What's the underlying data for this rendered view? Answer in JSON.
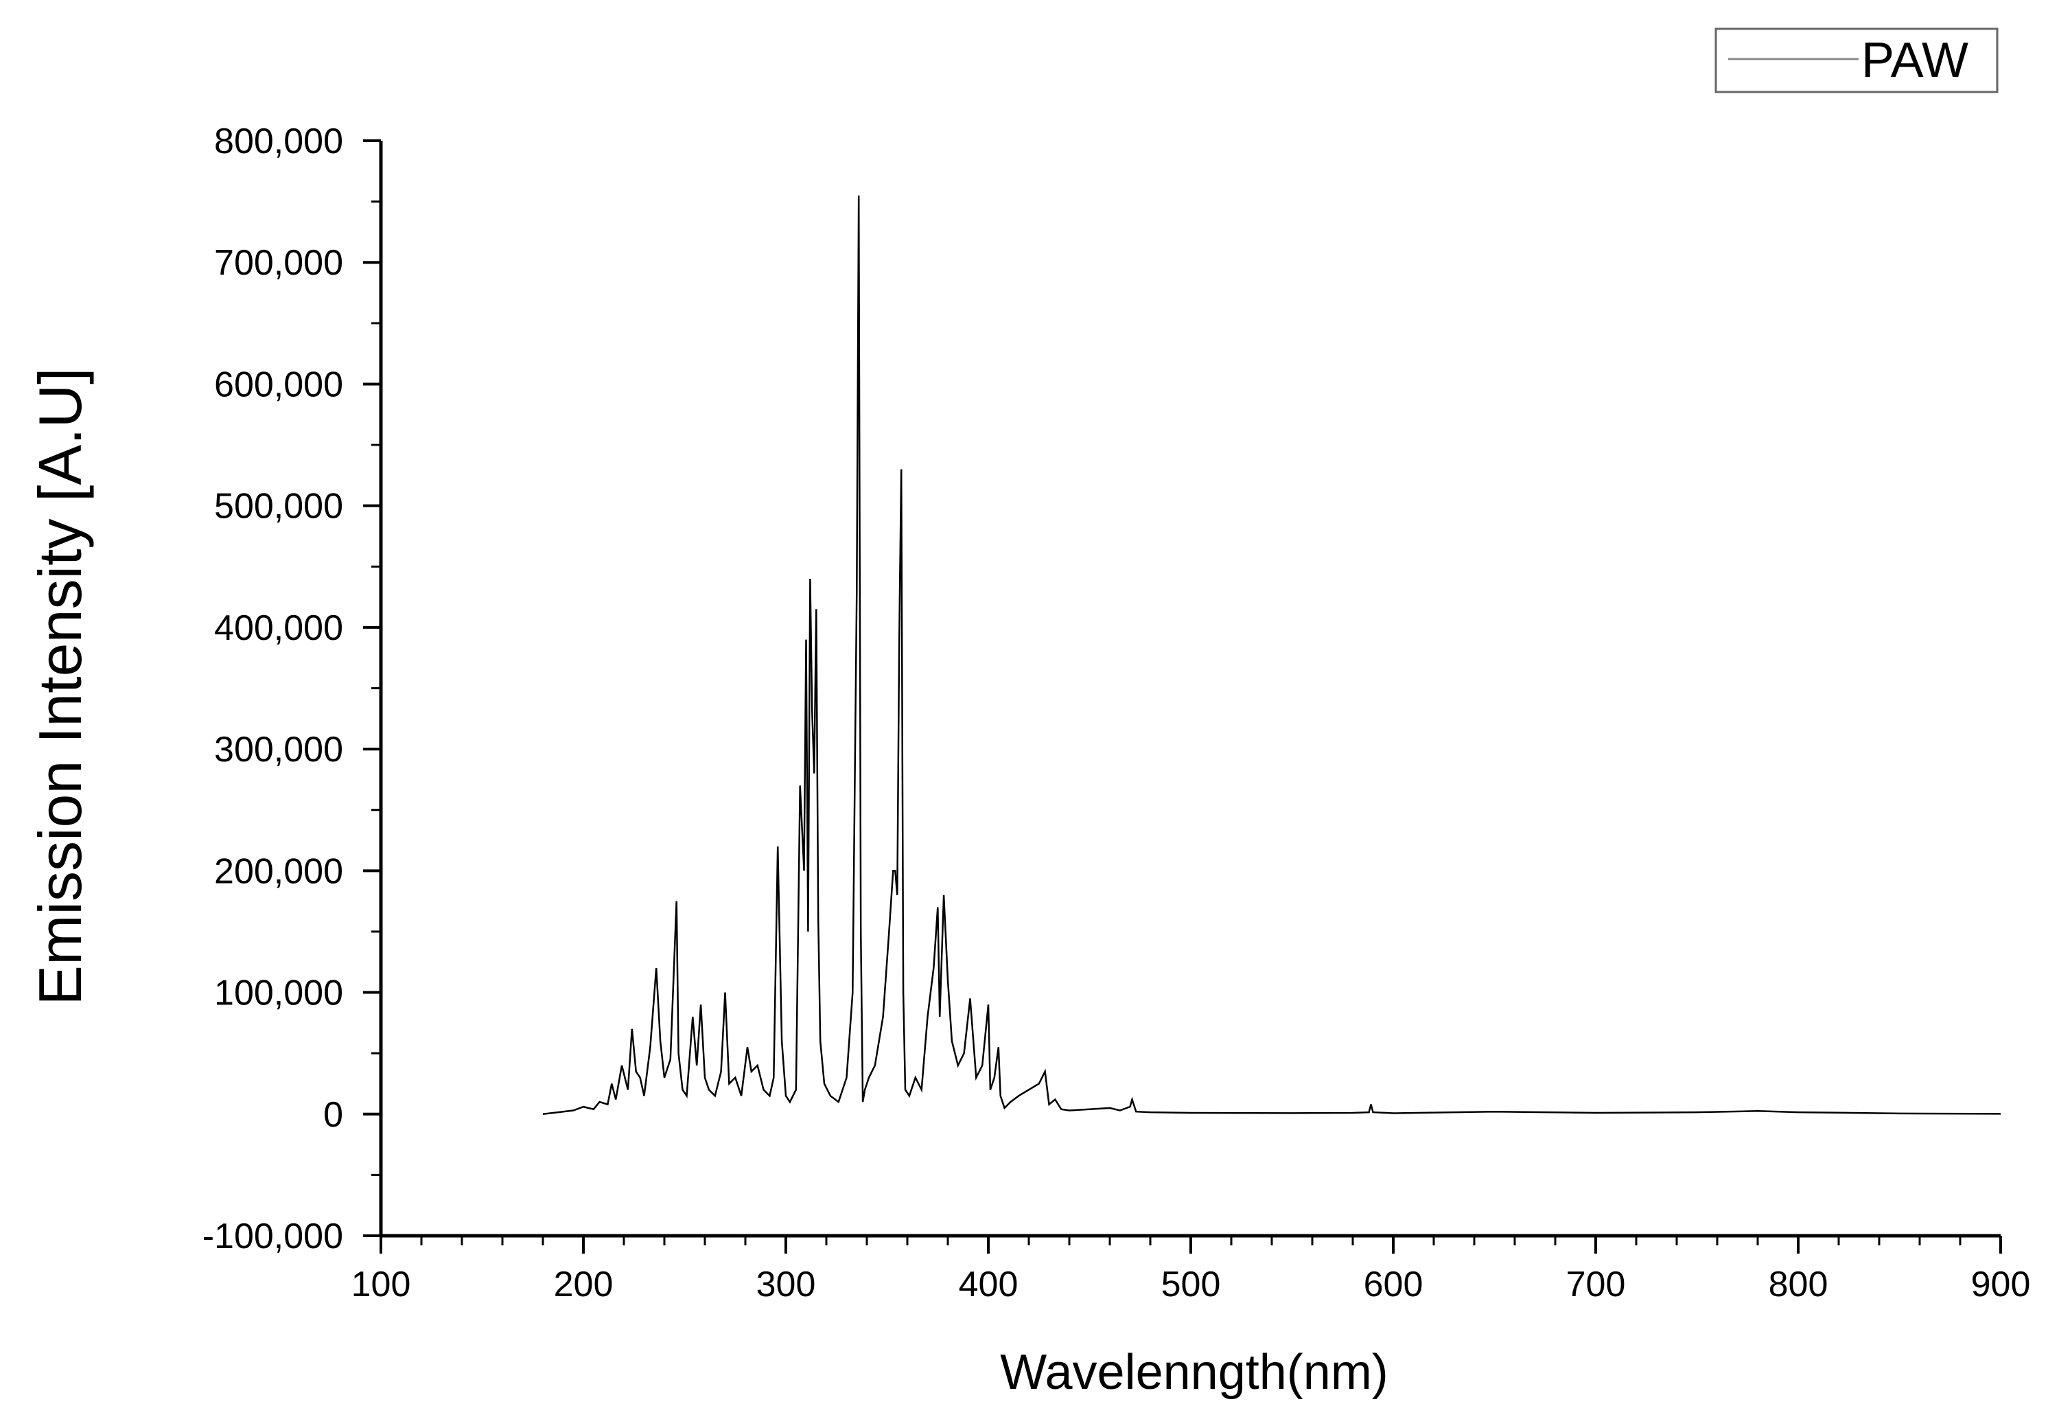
{
  "chart_data": {
    "type": "line",
    "xlabel": "Wavelenngth(nm)",
    "ylabel": "Emission Intensity [A.U]",
    "xlim": [
      100,
      900
    ],
    "ylim": [
      -100000,
      800000
    ],
    "x_ticks": [
      100,
      200,
      300,
      400,
      500,
      600,
      700,
      800,
      900
    ],
    "x_tick_labels": [
      "100",
      "200",
      "300",
      "400",
      "500",
      "600",
      "700",
      "800",
      "900"
    ],
    "y_ticks": [
      -100000,
      0,
      100000,
      200000,
      300000,
      400000,
      500000,
      600000,
      700000,
      800000
    ],
    "y_tick_labels": [
      "-100,000",
      "0",
      "100,000",
      "200,000",
      "300,000",
      "400,000",
      "500,000",
      "600,000",
      "700,000",
      "800,000"
    ],
    "grid": false,
    "legend": "top-right",
    "series": [
      {
        "name": "PAW",
        "color": "#000000",
        "x": [
          180,
          195,
          200,
          205,
          208,
          212,
          214,
          216,
          219,
          222,
          224,
          226,
          228,
          230,
          233,
          236,
          238,
          240,
          243,
          246,
          247,
          249,
          251,
          254,
          256,
          258,
          260,
          262,
          265,
          268,
          270,
          272,
          275,
          278,
          281,
          283,
          286,
          289,
          292,
          294,
          296,
          298,
          300,
          302,
          305,
          307,
          309,
          310,
          311,
          312,
          313,
          314,
          315,
          316,
          317,
          319,
          322,
          326,
          330,
          333,
          335,
          336,
          337,
          338,
          339,
          341,
          344,
          348,
          351,
          353,
          354,
          355,
          356,
          357,
          358,
          359,
          361,
          364,
          367,
          370,
          373,
          375,
          376,
          378,
          380,
          382,
          385,
          388,
          391,
          394,
          397,
          400,
          401,
          403,
          405,
          406,
          408,
          411,
          415,
          420,
          425,
          428,
          430,
          433,
          436,
          440,
          450,
          460,
          465,
          470,
          471,
          473,
          480,
          500,
          550,
          580,
          588,
          589,
          590,
          600,
          650,
          700,
          750,
          780,
          800,
          820,
          850,
          900
        ],
        "y": [
          0,
          3000,
          6000,
          4000,
          10000,
          8000,
          25000,
          12000,
          40000,
          20000,
          70000,
          35000,
          30000,
          15000,
          55000,
          120000,
          60000,
          30000,
          45000,
          175000,
          50000,
          20000,
          15000,
          80000,
          40000,
          90000,
          30000,
          20000,
          15000,
          35000,
          100000,
          25000,
          30000,
          15000,
          55000,
          35000,
          40000,
          20000,
          15000,
          30000,
          220000,
          60000,
          15000,
          10000,
          20000,
          270000,
          200000,
          390000,
          150000,
          440000,
          330000,
          280000,
          415000,
          160000,
          60000,
          25000,
          15000,
          10000,
          30000,
          100000,
          430000,
          755000,
          150000,
          10000,
          20000,
          30000,
          40000,
          80000,
          150000,
          200000,
          200000,
          180000,
          390000,
          530000,
          100000,
          20000,
          15000,
          30000,
          20000,
          80000,
          120000,
          170000,
          80000,
          180000,
          110000,
          60000,
          40000,
          50000,
          95000,
          30000,
          40000,
          90000,
          20000,
          30000,
          55000,
          15000,
          5000,
          10000,
          15000,
          20000,
          25000,
          35000,
          8000,
          12000,
          4000,
          3000,
          4000,
          5000,
          3000,
          6000,
          12000,
          2000,
          1500,
          1000,
          800,
          1000,
          1500,
          8000,
          1500,
          700,
          2000,
          1000,
          1500,
          2500,
          1500,
          1200,
          500,
          200
        ]
      }
    ]
  }
}
